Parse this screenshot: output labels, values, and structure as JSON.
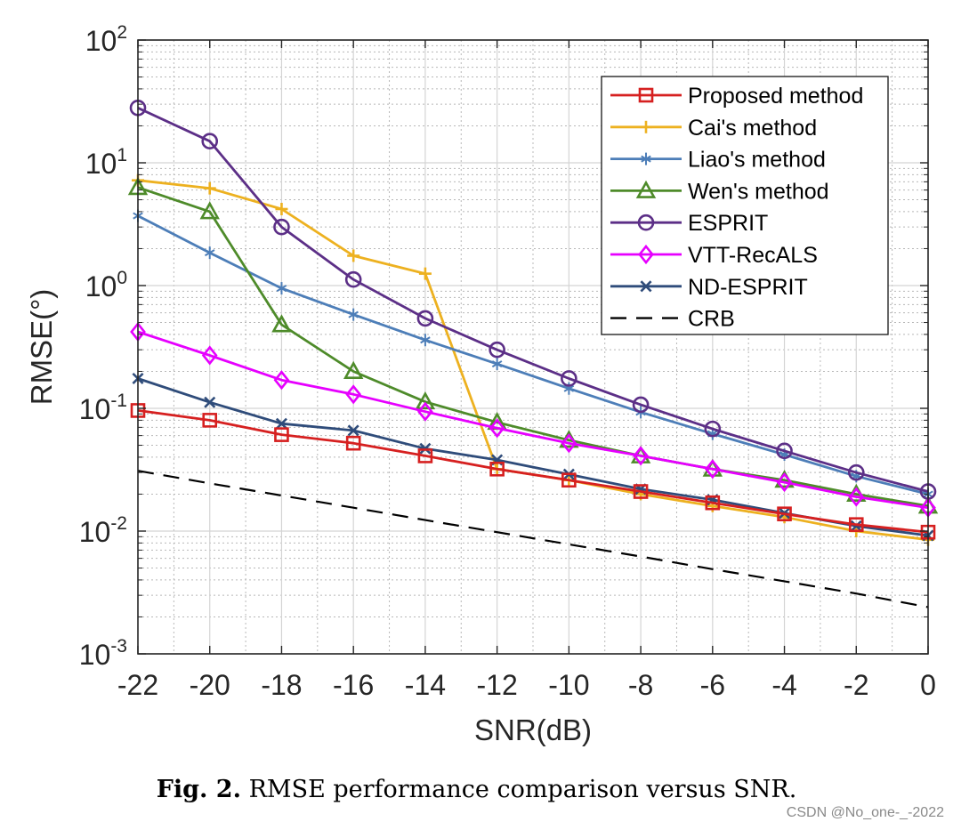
{
  "chart_data": {
    "type": "line",
    "title": "",
    "xlabel": "SNR(dB)",
    "ylabel": "RMSE(°)",
    "yscale": "log",
    "xlim": [
      -22,
      0
    ],
    "ylim": [
      0.001,
      100
    ],
    "grid": true,
    "minor_grid": true,
    "legend_position": "top-right",
    "x": [
      -22,
      -20,
      -18,
      -16,
      -14,
      -12,
      -10,
      -8,
      -6,
      -4,
      -2,
      0
    ],
    "x_tick_labels": [
      "-22",
      "-20",
      "-18",
      "-16",
      "-14",
      "-12",
      "-10",
      "-8",
      "-6",
      "-4",
      "-2",
      "0"
    ],
    "y_ticks": [
      {
        "value": 100,
        "base": "10",
        "exp": "2"
      },
      {
        "value": 10,
        "base": "10",
        "exp": "1"
      },
      {
        "value": 1,
        "base": "10",
        "exp": "0"
      },
      {
        "value": 0.1,
        "base": "10",
        "exp": "-1"
      },
      {
        "value": 0.01,
        "base": "10",
        "exp": "-2"
      },
      {
        "value": 0.001,
        "base": "10",
        "exp": "-3"
      }
    ],
    "series": [
      {
        "name": "Cai's method",
        "color": "#EDB120",
        "marker": "plus",
        "dash": "",
        "values": [
          7.2,
          6.2,
          4.2,
          1.75,
          1.25,
          0.032,
          0.026,
          0.02,
          0.016,
          0.013,
          0.01,
          0.0085
        ]
      },
      {
        "name": "Liao's method",
        "color": "#4D7EB8",
        "marker": "asterisk",
        "dash": "",
        "values": [
          3.7,
          1.85,
          0.95,
          0.58,
          0.36,
          0.23,
          0.145,
          0.093,
          0.062,
          0.042,
          0.028,
          0.02
        ]
      },
      {
        "name": "Wen's method",
        "color": "#4E8B2A",
        "marker": "triangle",
        "dash": "",
        "values": [
          6.3,
          4.0,
          0.48,
          0.2,
          0.113,
          0.077,
          0.055,
          0.041,
          0.032,
          0.026,
          0.02,
          0.016
        ]
      },
      {
        "name": "ESPRIT",
        "color": "#5C2F87",
        "marker": "circle",
        "dash": "",
        "values": [
          28,
          15,
          3.0,
          1.12,
          0.54,
          0.3,
          0.175,
          0.107,
          0.068,
          0.045,
          0.03,
          0.021
        ]
      },
      {
        "name": "VTT-RecALS",
        "color": "#E600FF",
        "marker": "diamond",
        "dash": "",
        "values": [
          0.42,
          0.27,
          0.17,
          0.13,
          0.094,
          0.069,
          0.052,
          0.041,
          0.032,
          0.025,
          0.019,
          0.0155
        ]
      },
      {
        "name": "ND-ESPRIT",
        "color": "#2F4C7A",
        "marker": "x",
        "dash": "",
        "values": [
          0.175,
          0.112,
          0.075,
          0.066,
          0.047,
          0.038,
          0.029,
          0.022,
          0.018,
          0.014,
          0.011,
          0.0092
        ]
      },
      {
        "name": "Proposed method",
        "color": "#D62020",
        "marker": "square",
        "dash": "",
        "values": [
          0.096,
          0.08,
          0.061,
          0.052,
          0.041,
          0.032,
          0.026,
          0.021,
          0.017,
          0.0138,
          0.0113,
          0.0098
        ]
      },
      {
        "name": "CRB",
        "color": "#000000",
        "marker": "none",
        "dash": "18,11",
        "values": [
          0.031,
          0.0245,
          0.0195,
          0.0155,
          0.0123,
          0.0098,
          0.0078,
          0.0062,
          0.0049,
          0.0039,
          0.0031,
          0.0024
        ]
      }
    ],
    "legend_order": [
      "Proposed method",
      "Cai's method",
      "Liao's method",
      "Wen's method",
      "ESPRIT",
      "VTT-RecALS",
      "ND-ESPRIT",
      "CRB"
    ]
  },
  "caption": {
    "label": "Fig. 2.",
    "text": "RMSE performance comparison versus SNR."
  },
  "watermark": "CSDN @No_one-_-2022"
}
